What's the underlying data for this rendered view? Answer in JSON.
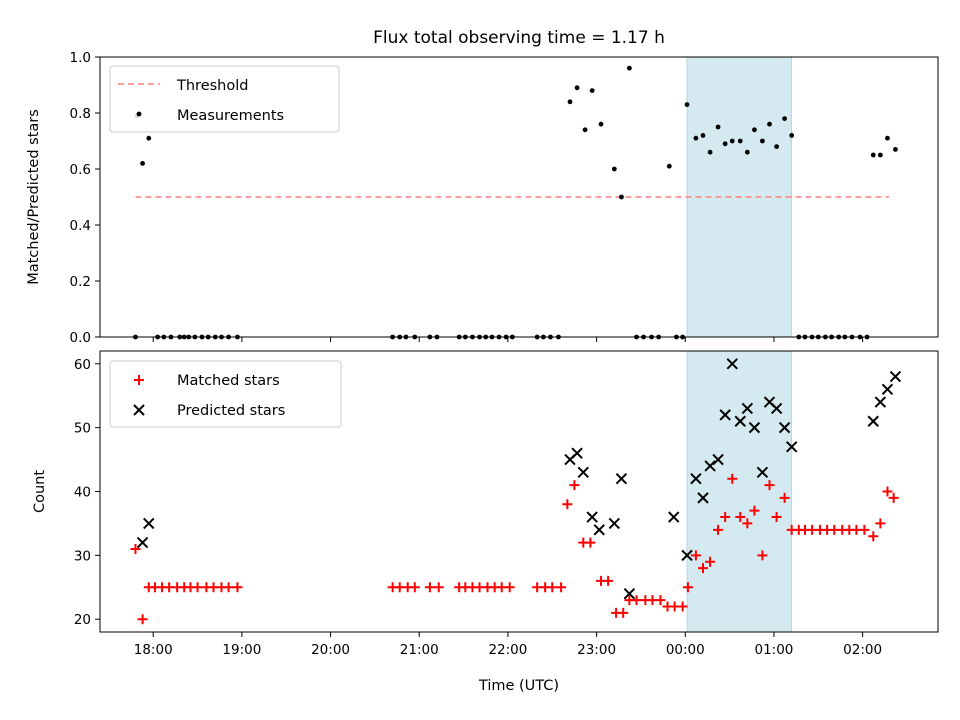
{
  "chart_data": [
    {
      "type": "scatter",
      "title": "Flux total observing time = 1.17 h",
      "ylabel": "Matched/Predicted stars",
      "xlabel": "",
      "ylim": [
        0,
        1.0
      ],
      "yticks": [
        "0.0",
        "0.2",
        "0.4",
        "0.6",
        "0.8",
        "1.0"
      ],
      "ytick_values": [
        0,
        0.2,
        0.4,
        0.6,
        0.8,
        1.0
      ],
      "legend_position": "top-left",
      "highlight_span": {
        "start_h": 24.02,
        "end_h": 25.2,
        "color": "#d4eaf0"
      },
      "threshold": {
        "name": "Threshold",
        "value": 0.5,
        "x_start_h": 17.8,
        "x_end_h": 26.3,
        "color": "#ff7f7f"
      },
      "series": [
        {
          "name": "Measurements",
          "marker": "dot",
          "color": "#000000",
          "points": [
            [
              17.8,
              0.0
            ],
            [
              17.82,
              0.79
            ],
            [
              17.88,
              0.62
            ],
            [
              17.95,
              0.71
            ],
            [
              18.05,
              0.0
            ],
            [
              18.12,
              0.0
            ],
            [
              18.2,
              0.0
            ],
            [
              18.3,
              0.0
            ],
            [
              18.35,
              0.0
            ],
            [
              18.4,
              0.0
            ],
            [
              18.47,
              0.0
            ],
            [
              18.55,
              0.0
            ],
            [
              18.62,
              0.0
            ],
            [
              18.7,
              0.0
            ],
            [
              18.77,
              0.0
            ],
            [
              18.85,
              0.0
            ],
            [
              18.95,
              0.0
            ],
            [
              20.7,
              0.0
            ],
            [
              20.78,
              0.0
            ],
            [
              20.85,
              0.0
            ],
            [
              20.95,
              0.0
            ],
            [
              21.12,
              0.0
            ],
            [
              21.2,
              0.0
            ],
            [
              21.45,
              0.0
            ],
            [
              21.52,
              0.0
            ],
            [
              21.6,
              0.0
            ],
            [
              21.68,
              0.0
            ],
            [
              21.75,
              0.0
            ],
            [
              21.82,
              0.0
            ],
            [
              21.9,
              0.0
            ],
            [
              21.98,
              0.0
            ],
            [
              22.05,
              0.0
            ],
            [
              22.33,
              0.0
            ],
            [
              22.4,
              0.0
            ],
            [
              22.48,
              0.0
            ],
            [
              22.57,
              0.0
            ],
            [
              22.7,
              0.84
            ],
            [
              22.78,
              0.89
            ],
            [
              22.87,
              0.74
            ],
            [
              22.95,
              0.88
            ],
            [
              23.05,
              0.76
            ],
            [
              23.2,
              0.6
            ],
            [
              23.28,
              0.5
            ],
            [
              23.37,
              0.96
            ],
            [
              23.45,
              0.0
            ],
            [
              23.53,
              0.0
            ],
            [
              23.62,
              0.0
            ],
            [
              23.7,
              0.0
            ],
            [
              23.82,
              0.61
            ],
            [
              23.9,
              0.0
            ],
            [
              23.97,
              0.0
            ],
            [
              24.02,
              0.83
            ],
            [
              24.12,
              0.71
            ],
            [
              24.2,
              0.72
            ],
            [
              24.28,
              0.66
            ],
            [
              24.37,
              0.75
            ],
            [
              24.45,
              0.69
            ],
            [
              24.53,
              0.7
            ],
            [
              24.62,
              0.7
            ],
            [
              24.7,
              0.66
            ],
            [
              24.78,
              0.74
            ],
            [
              24.87,
              0.7
            ],
            [
              24.95,
              0.76
            ],
            [
              25.03,
              0.68
            ],
            [
              25.12,
              0.78
            ],
            [
              25.2,
              0.72
            ],
            [
              25.28,
              0.0
            ],
            [
              25.35,
              0.0
            ],
            [
              25.43,
              0.0
            ],
            [
              25.5,
              0.0
            ],
            [
              25.58,
              0.0
            ],
            [
              25.65,
              0.0
            ],
            [
              25.73,
              0.0
            ],
            [
              25.8,
              0.0
            ],
            [
              25.88,
              0.0
            ],
            [
              25.97,
              0.0
            ],
            [
              26.05,
              0.0
            ],
            [
              26.12,
              0.65
            ],
            [
              26.2,
              0.65
            ],
            [
              26.28,
              0.71
            ],
            [
              26.37,
              0.67
            ]
          ]
        }
      ]
    },
    {
      "type": "scatter",
      "title": "",
      "ylabel": "Count",
      "xlabel": "Time (UTC)",
      "ylim": [
        18,
        62
      ],
      "yticks": [
        "20",
        "30",
        "40",
        "50",
        "60"
      ],
      "ytick_values": [
        20,
        30,
        40,
        50,
        60
      ],
      "xlim_h": [
        17.4,
        26.85
      ],
      "xticks": [
        "18:00",
        "19:00",
        "20:00",
        "21:00",
        "22:00",
        "23:00",
        "00:00",
        "01:00",
        "02:00"
      ],
      "xtick_values_h": [
        18,
        19,
        20,
        21,
        22,
        23,
        24,
        25,
        26
      ],
      "legend_position": "top-left",
      "highlight_span": {
        "start_h": 24.02,
        "end_h": 25.2,
        "color": "#d4eaf0"
      },
      "series": [
        {
          "name": "Matched stars",
          "marker": "plus",
          "color": "#ff0000",
          "points": [
            [
              17.8,
              31
            ],
            [
              17.88,
              20
            ],
            [
              17.95,
              25
            ],
            [
              18.02,
              25
            ],
            [
              18.1,
              25
            ],
            [
              18.18,
              25
            ],
            [
              18.27,
              25
            ],
            [
              18.35,
              25
            ],
            [
              18.42,
              25
            ],
            [
              18.5,
              25
            ],
            [
              18.6,
              25
            ],
            [
              18.68,
              25
            ],
            [
              18.77,
              25
            ],
            [
              18.85,
              25
            ],
            [
              18.95,
              25
            ],
            [
              20.7,
              25
            ],
            [
              20.78,
              25
            ],
            [
              20.87,
              25
            ],
            [
              20.95,
              25
            ],
            [
              21.12,
              25
            ],
            [
              21.22,
              25
            ],
            [
              21.45,
              25
            ],
            [
              21.52,
              25
            ],
            [
              21.6,
              25
            ],
            [
              21.68,
              25
            ],
            [
              21.77,
              25
            ],
            [
              21.85,
              25
            ],
            [
              21.93,
              25
            ],
            [
              22.02,
              25
            ],
            [
              22.33,
              25
            ],
            [
              22.42,
              25
            ],
            [
              22.5,
              25
            ],
            [
              22.6,
              25
            ],
            [
              22.67,
              38
            ],
            [
              22.75,
              41
            ],
            [
              22.85,
              32
            ],
            [
              22.93,
              32
            ],
            [
              23.05,
              26
            ],
            [
              23.13,
              26
            ],
            [
              23.22,
              21
            ],
            [
              23.3,
              21
            ],
            [
              23.37,
              23
            ],
            [
              23.45,
              23
            ],
            [
              23.55,
              23
            ],
            [
              23.63,
              23
            ],
            [
              23.72,
              23
            ],
            [
              23.8,
              22
            ],
            [
              23.88,
              22
            ],
            [
              23.97,
              22
            ],
            [
              24.03,
              25
            ],
            [
              24.12,
              30
            ],
            [
              24.2,
              28
            ],
            [
              24.28,
              29
            ],
            [
              24.37,
              34
            ],
            [
              24.45,
              36
            ],
            [
              24.53,
              42
            ],
            [
              24.62,
              36
            ],
            [
              24.7,
              35
            ],
            [
              24.78,
              37
            ],
            [
              24.87,
              30
            ],
            [
              24.95,
              41
            ],
            [
              25.03,
              36
            ],
            [
              25.12,
              39
            ],
            [
              25.2,
              34
            ],
            [
              25.28,
              34
            ],
            [
              25.35,
              34
            ],
            [
              25.43,
              34
            ],
            [
              25.52,
              34
            ],
            [
              25.6,
              34
            ],
            [
              25.68,
              34
            ],
            [
              25.77,
              34
            ],
            [
              25.85,
              34
            ],
            [
              25.93,
              34
            ],
            [
              26.02,
              34
            ],
            [
              26.12,
              33
            ],
            [
              26.2,
              35
            ],
            [
              26.28,
              40
            ],
            [
              26.35,
              39
            ]
          ]
        },
        {
          "name": "Predicted stars",
          "marker": "x",
          "color": "#000000",
          "points": [
            [
              17.88,
              32
            ],
            [
              17.95,
              35
            ],
            [
              22.7,
              45
            ],
            [
              22.78,
              46
            ],
            [
              22.85,
              43
            ],
            [
              22.95,
              36
            ],
            [
              23.03,
              34
            ],
            [
              23.2,
              35
            ],
            [
              23.28,
              42
            ],
            [
              23.37,
              24
            ],
            [
              23.87,
              36
            ],
            [
              24.02,
              30
            ],
            [
              24.12,
              42
            ],
            [
              24.2,
              39
            ],
            [
              24.28,
              44
            ],
            [
              24.37,
              45
            ],
            [
              24.45,
              52
            ],
            [
              24.53,
              60
            ],
            [
              24.62,
              51
            ],
            [
              24.7,
              53
            ],
            [
              24.78,
              50
            ],
            [
              24.87,
              43
            ],
            [
              24.95,
              54
            ],
            [
              25.03,
              53
            ],
            [
              25.12,
              50
            ],
            [
              25.2,
              47
            ],
            [
              26.12,
              51
            ],
            [
              26.2,
              54
            ],
            [
              26.28,
              56
            ],
            [
              26.37,
              58
            ]
          ]
        }
      ]
    }
  ]
}
